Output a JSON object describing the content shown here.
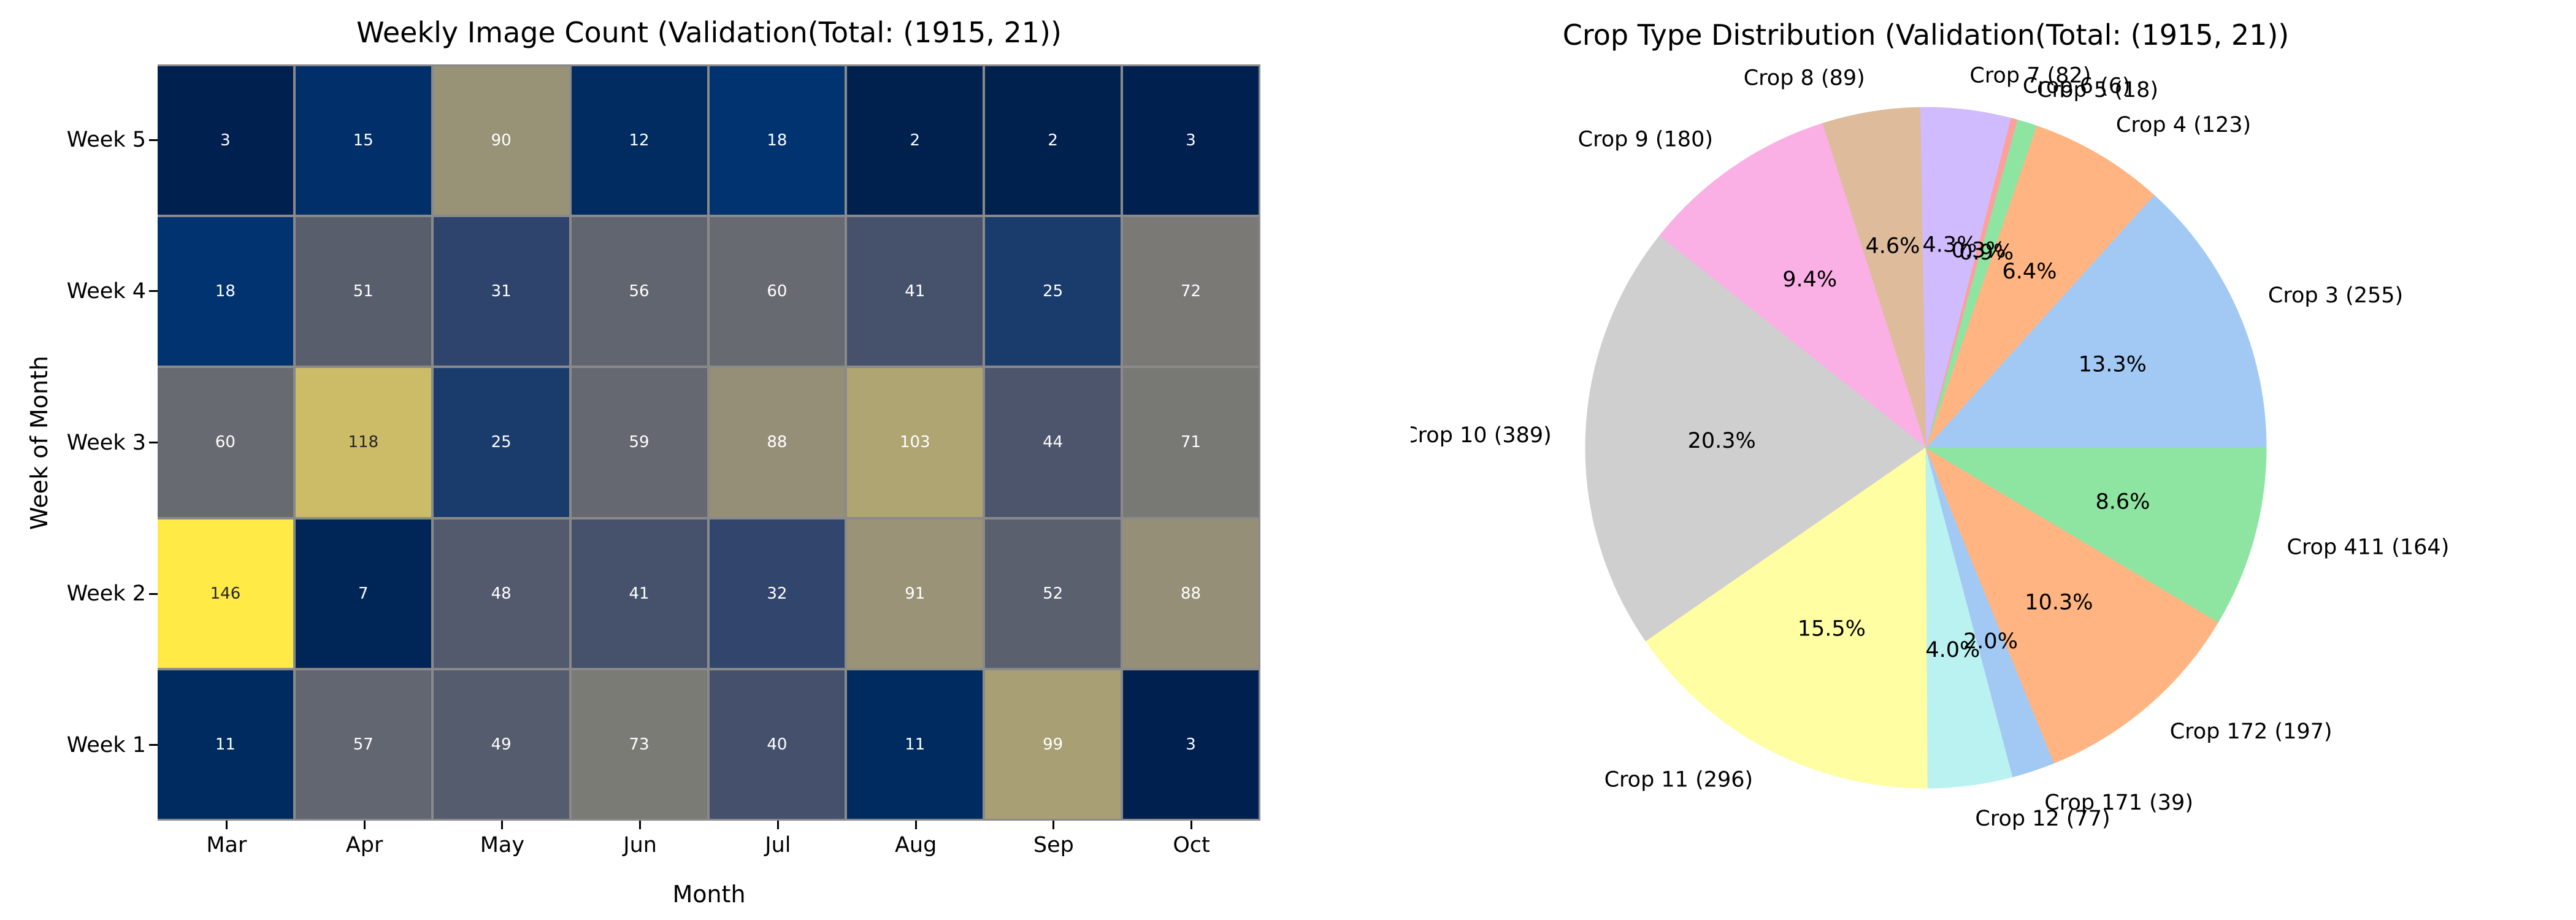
{
  "chart_data": [
    {
      "type": "heatmap",
      "title": "Weekly Image Count (Validation(Total: (1915, 21))",
      "xlabel": "Month",
      "ylabel": "Week of Month",
      "columns": [
        "Mar",
        "Apr",
        "May",
        "Jun",
        "Jul",
        "Aug",
        "Sep",
        "Oct"
      ],
      "rows": [
        "Week 5",
        "Week 4",
        "Week 3",
        "Week 2",
        "Week 1"
      ],
      "values": [
        [
          3,
          15,
          90,
          12,
          18,
          2,
          2,
          3
        ],
        [
          18,
          51,
          31,
          56,
          60,
          41,
          25,
          72
        ],
        [
          60,
          118,
          25,
          59,
          88,
          103,
          44,
          71
        ],
        [
          146,
          7,
          48,
          41,
          32,
          91,
          52,
          88
        ],
        [
          11,
          57,
          49,
          73,
          40,
          11,
          99,
          3
        ]
      ],
      "vmin": 2,
      "vmax": 146,
      "colormap": "cividis",
      "colormap_stops": [
        "#00204d",
        "#00336f",
        "#39486b",
        "#575d6d",
        "#707173",
        "#8a8779",
        "#a69d75",
        "#c4b56c",
        "#e4cf5b",
        "#ffea46"
      ],
      "grid_line_color": "#8a8a8a",
      "annotation_dark_color": "#262626",
      "annotation_light_color": "#ffffff",
      "grid_on": true
    },
    {
      "type": "pie",
      "title": "Crop Type Distribution (Validation(Total: (1915, 21))",
      "start_angle": 0,
      "direction": "counterclockwise",
      "total": 1915,
      "slices": [
        {
          "label": "Crop 3",
          "value": 255,
          "display": "Crop 3 (255)",
          "pct": "13.3%",
          "color": "#a1c9f4"
        },
        {
          "label": "Crop 4",
          "value": 123,
          "display": "Crop 4 (123)",
          "pct": "6.4%",
          "color": "#ffb482"
        },
        {
          "label": "Crop 5",
          "value": 18,
          "display": "Crop 5 (18)",
          "pct": "0.9%",
          "color": "#8de5a1"
        },
        {
          "label": "Crop 6",
          "value": 6,
          "display": "Crop 6 (6)",
          "pct": "0.3%",
          "color": "#ff9f9b"
        },
        {
          "label": "Crop 7",
          "value": 82,
          "display": "Crop 7 (82)",
          "pct": "4.3%",
          "color": "#d0bbff"
        },
        {
          "label": "Crop 8",
          "value": 89,
          "display": "Crop 8 (89)",
          "pct": "4.6%",
          "color": "#debb9b"
        },
        {
          "label": "Crop 9",
          "value": 180,
          "display": "Crop 9 (180)",
          "pct": "9.4%",
          "color": "#fab0e4"
        },
        {
          "label": "Crop 10",
          "value": 389,
          "display": "Crop 10 (389)",
          "pct": "20.3%",
          "color": "#cfcfcf"
        },
        {
          "label": "Crop 11",
          "value": 296,
          "display": "Crop 11 (296)",
          "pct": "15.5%",
          "color": "#fffea3"
        },
        {
          "label": "Crop 12",
          "value": 77,
          "display": "Crop 12 (77)",
          "pct": "4.0%",
          "color": "#b9f2f0"
        },
        {
          "label": "Crop 171",
          "value": 39,
          "display": "Crop 171 (39)",
          "pct": "2.0%",
          "color": "#a1c9f4"
        },
        {
          "label": "Crop 172",
          "value": 197,
          "display": "Crop 172 (197)",
          "pct": "10.3%",
          "color": "#ffb482"
        },
        {
          "label": "Crop 411",
          "value": 164,
          "display": "Crop 411 (164)",
          "pct": "8.6%",
          "color": "#8de5a1"
        }
      ]
    }
  ]
}
